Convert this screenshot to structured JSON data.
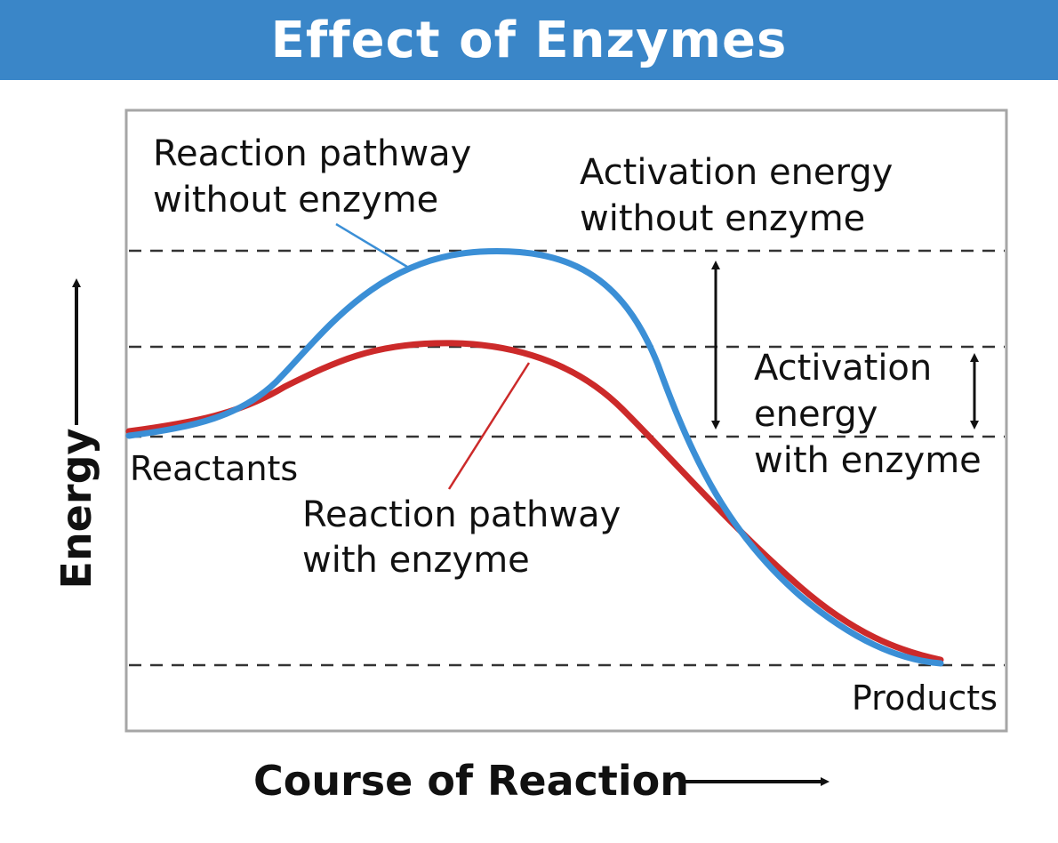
{
  "title": "Effect of Enzymes",
  "axes": {
    "y_label": "Energy",
    "x_label": "Course of Reaction"
  },
  "labels": {
    "pathway_without": [
      "Reaction pathway",
      "without enzyme"
    ],
    "activation_without": [
      "Activation energy",
      "without enzyme"
    ],
    "activation_with": [
      "Activation",
      "energy",
      "with enzyme"
    ],
    "reactants": "Reactants",
    "pathway_with": [
      "Reaction pathway",
      "with enzyme"
    ],
    "products": "Products"
  },
  "colors": {
    "title_bar": "#3a86c8",
    "without_enzyme_curve": "#3b8fd6",
    "with_enzyme_curve": "#cc2a2a",
    "dashed_lines": "#333333",
    "plot_border": "#a6a6a6"
  }
}
